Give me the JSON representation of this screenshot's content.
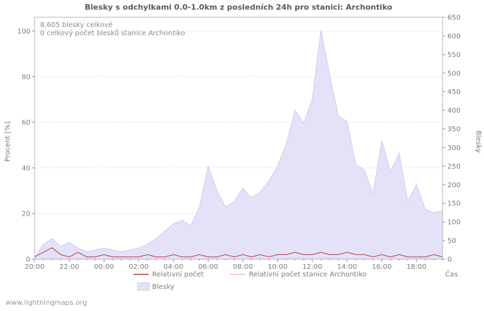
{
  "watermark": "www.lightningmaps.org",
  "chart": {
    "title": "Blesky s odchylkami 0.0-1.0km z posledních 24h pro stanici: Archontiko",
    "annotations": {
      "total": "8,605 blesky celkové",
      "station": "0 celkový počet blesků stanice Archontiko"
    },
    "axes": {
      "left_label": "Procent   [%]",
      "right_label": "Blesky",
      "x_label": "Čas"
    },
    "legend": [
      {
        "label": "Relativní počet",
        "type": "line",
        "color": "#b04050"
      },
      {
        "label": "Relativní počet stanice Archontiko",
        "type": "line",
        "color": "#f4b8bd"
      },
      {
        "label": "Blesky",
        "type": "area",
        "color": "#e4e2f8"
      }
    ]
  },
  "chart_data": {
    "type": "area",
    "title": "Blesky s odchylkami 0.0-1.0km z posledních 24h pro stanici: Archontiko",
    "x_start": "20:00",
    "x_step_minutes": 30,
    "x_major_every": 4,
    "x_tick_labels": [
      "20:00",
      "22:00",
      "00:00",
      "02:00",
      "04:00",
      "06:00",
      "08:00",
      "10:00",
      "12:00",
      "14:00",
      "16:00",
      "18:00"
    ],
    "xlabel": "Čas",
    "y_left": {
      "label": "Procent [%]",
      "min": 0,
      "max": 106,
      "ticks": [
        0,
        20,
        40,
        60,
        80,
        100
      ]
    },
    "y_right": {
      "label": "Blesky",
      "min": 0,
      "max": 650,
      "tick_step": 50
    },
    "grid": "horizontal-dotted",
    "legend_position": "bottom",
    "totals": {
      "blesky_celkove": 8605,
      "blesky_stanice": 0
    },
    "series": [
      {
        "name": "Blesky",
        "type": "area",
        "axis": "right",
        "color": "#e4e2f8",
        "edge_color": "#cfccf0",
        "values": [
          5,
          40,
          55,
          35,
          45,
          30,
          20,
          25,
          30,
          25,
          20,
          25,
          30,
          40,
          55,
          75,
          95,
          105,
          90,
          140,
          250,
          185,
          140,
          155,
          190,
          165,
          180,
          210,
          250,
          310,
          400,
          365,
          430,
          615,
          495,
          385,
          370,
          255,
          240,
          175,
          320,
          235,
          285,
          155,
          200,
          135,
          125,
          130
        ]
      },
      {
        "name": "Relativní počet",
        "type": "line",
        "axis": "left",
        "color": "#b04050",
        "values": [
          1,
          3,
          5,
          2,
          1,
          3,
          1,
          1,
          2,
          1,
          1,
          1,
          1,
          2,
          1,
          1,
          2,
          1,
          1,
          2,
          1,
          1,
          2,
          1,
          2,
          1,
          2,
          1,
          2,
          2,
          3,
          2,
          2,
          3,
          2,
          2,
          3,
          2,
          2,
          1,
          2,
          1,
          2,
          1,
          1,
          1,
          2,
          1
        ]
      },
      {
        "name": "Relativní počet stanice Archontiko",
        "type": "line",
        "axis": "left",
        "color": "#f4b8bd",
        "values": [
          0,
          0,
          0,
          0,
          0,
          0,
          0,
          0,
          0,
          0,
          0,
          0,
          0,
          0,
          0,
          0,
          0,
          0,
          0,
          0,
          0,
          0,
          0,
          0,
          0,
          0,
          0,
          0,
          0,
          0,
          0,
          0,
          0,
          0,
          0,
          0,
          0,
          0,
          0,
          0,
          0,
          0,
          0,
          0,
          0,
          0,
          0,
          0
        ]
      }
    ]
  }
}
